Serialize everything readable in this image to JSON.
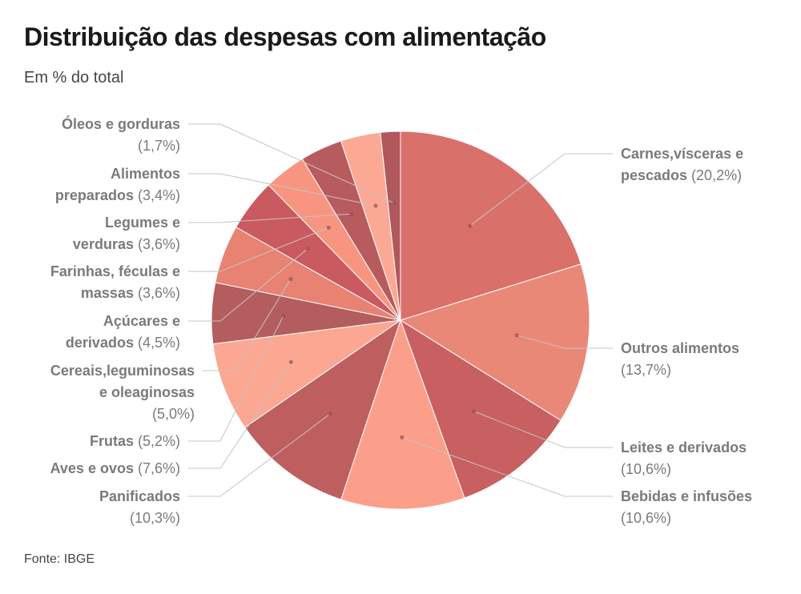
{
  "title": "Distribuição das despesas com alimentação",
  "subtitle": "Em % do total",
  "source": "Fonte: IBGE",
  "chart_data": {
    "type": "pie",
    "title": "Distribuição das despesas com alimentação",
    "subtitle": "Em % do total",
    "unit": "%",
    "slices": [
      {
        "label": "Carnes,vísceras e pescados",
        "value": 20.2,
        "value_label": "(20,2%)",
        "color": "#d9706a"
      },
      {
        "label": "Outros alimentos",
        "value": 13.7,
        "value_label": "(13,7%)",
        "color": "#ea8878"
      },
      {
        "label": "Leites e derivados",
        "value": 10.6,
        "value_label": "(10,6%)",
        "color": "#c85f61"
      },
      {
        "label": "Bebidas e infusões",
        "value": 10.6,
        "value_label": "(10,6%)",
        "color": "#fb9f8a"
      },
      {
        "label": "Panificados",
        "value": 10.3,
        "value_label": "(10,3%)",
        "color": "#be5e5e"
      },
      {
        "label": "Aves e ovos",
        "value": 7.6,
        "value_label": "(7,6%)",
        "color": "#fba792"
      },
      {
        "label": "Frutas",
        "value": 5.2,
        "value_label": "(5,2%)",
        "color": "#b35d5f"
      },
      {
        "label": "Cereais,leguminosas e oleaginosas",
        "value": 5.0,
        "value_label": "(5,0%)",
        "color": "#e88273"
      },
      {
        "label": "Açúcares e derivados",
        "value": 4.5,
        "value_label": "(4,5%)",
        "color": "#c95a5f"
      },
      {
        "label": "Farinhas, féculas e massas",
        "value": 3.6,
        "value_label": "(3,6%)",
        "color": "#f89580"
      },
      {
        "label": "Legumes e verduras",
        "value": 3.6,
        "value_label": "(3,6%)",
        "color": "#b85b5e"
      },
      {
        "label": "Alimentos preparados",
        "value": 3.4,
        "value_label": "(3,4%)",
        "color": "#fba995"
      },
      {
        "label": "Óleos e gorduras",
        "value": 1.7,
        "value_label": "(1,7%)",
        "color": "#b0585c"
      }
    ]
  }
}
